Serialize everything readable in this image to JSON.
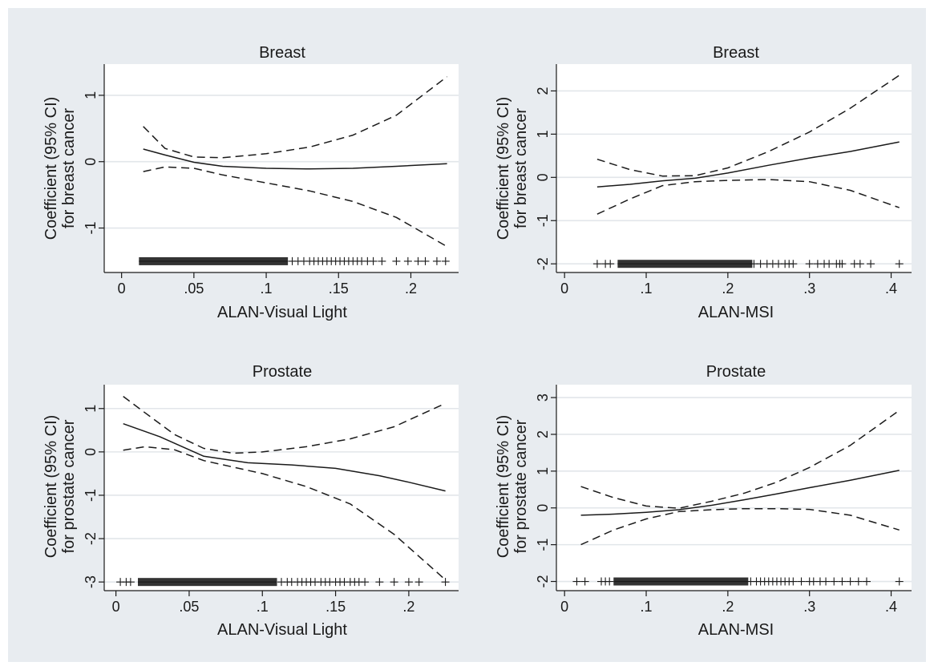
{
  "colors": {
    "figure_background": "#e8ecf0",
    "plot_background": "#ffffff",
    "gridline": "#e2e6ea",
    "line": "#1a1a1a"
  },
  "chart_data": [
    {
      "type": "line",
      "title": "Breast",
      "xlabel": "ALAN-Visual Light",
      "ylabel": [
        "Coefficient (95% CI)",
        "for breast cancer"
      ],
      "xlim": [
        -0.012,
        0.233
      ],
      "ylim": [
        -1.67,
        1.47
      ],
      "xticks": [
        0,
        0.05,
        0.1,
        0.15,
        0.2
      ],
      "xtick_labels": [
        "0",
        ".05",
        ".1",
        ".15",
        ".2"
      ],
      "yticks": [
        -1,
        0,
        1
      ],
      "ytick_labels": [
        "-1",
        "0",
        "1"
      ],
      "grid": true,
      "series": [
        {
          "style": "solid",
          "x": [
            0.015,
            0.03,
            0.05,
            0.07,
            0.1,
            0.13,
            0.16,
            0.19,
            0.225
          ],
          "y": [
            0.19,
            0.1,
            -0.01,
            -0.07,
            -0.1,
            -0.11,
            -0.1,
            -0.07,
            -0.03
          ]
        },
        {
          "style": "dashed",
          "x": [
            0.015,
            0.03,
            0.05,
            0.07,
            0.1,
            0.13,
            0.16,
            0.19,
            0.225
          ],
          "y": [
            0.53,
            0.2,
            0.07,
            0.06,
            0.12,
            0.22,
            0.4,
            0.7,
            1.28
          ]
        },
        {
          "style": "dashed",
          "x": [
            0.015,
            0.03,
            0.05,
            0.07,
            0.1,
            0.13,
            0.16,
            0.19,
            0.225
          ],
          "y": [
            -0.15,
            -0.08,
            -0.1,
            -0.2,
            -0.32,
            -0.44,
            -0.6,
            -0.84,
            -1.28
          ]
        }
      ],
      "rug": {
        "y": -1.5,
        "dense_range": [
          0.012,
          0.115
        ],
        "x": [
          0.118,
          0.122,
          0.126,
          0.13,
          0.133,
          0.136,
          0.139,
          0.142,
          0.145,
          0.148,
          0.151,
          0.154,
          0.157,
          0.16,
          0.163,
          0.166,
          0.17,
          0.174,
          0.18,
          0.19,
          0.198,
          0.205,
          0.21,
          0.218,
          0.224
        ]
      }
    },
    {
      "type": "line",
      "title": "Breast",
      "xlabel": "ALAN-MSI",
      "ylabel": [
        "Coefficient (95% CI)",
        "for breast cancer"
      ],
      "xlim": [
        -0.01,
        0.425
      ],
      "ylim": [
        -2.2,
        2.62
      ],
      "xticks": [
        0,
        0.1,
        0.2,
        0.3,
        0.4
      ],
      "xtick_labels": [
        "0",
        ".1",
        ".2",
        ".3",
        ".4"
      ],
      "yticks": [
        -2,
        -1,
        0,
        1,
        2
      ],
      "ytick_labels": [
        "-2",
        "-1",
        "0",
        "1",
        "2"
      ],
      "grid": true,
      "series": [
        {
          "style": "solid",
          "x": [
            0.04,
            0.08,
            0.12,
            0.16,
            0.2,
            0.25,
            0.3,
            0.35,
            0.41
          ],
          "y": [
            -0.22,
            -0.16,
            -0.08,
            -0.02,
            0.1,
            0.28,
            0.45,
            0.6,
            0.82
          ]
        },
        {
          "style": "dashed",
          "x": [
            0.04,
            0.08,
            0.12,
            0.16,
            0.2,
            0.25,
            0.3,
            0.35,
            0.41
          ],
          "y": [
            0.42,
            0.18,
            0.03,
            0.04,
            0.22,
            0.6,
            1.05,
            1.6,
            2.36
          ]
        },
        {
          "style": "dashed",
          "x": [
            0.04,
            0.08,
            0.12,
            0.16,
            0.2,
            0.25,
            0.3,
            0.35,
            0.41
          ],
          "y": [
            -0.85,
            -0.5,
            -0.19,
            -0.1,
            -0.07,
            -0.05,
            -0.1,
            -0.3,
            -0.7
          ]
        }
      ],
      "rug": {
        "y": -2.0,
        "dense_range": [
          0.065,
          0.23
        ],
        "x": [
          0.04,
          0.05,
          0.056,
          0.232,
          0.24,
          0.248,
          0.255,
          0.262,
          0.27,
          0.275,
          0.28,
          0.3,
          0.31,
          0.318,
          0.324,
          0.333,
          0.337,
          0.34,
          0.355,
          0.362,
          0.375,
          0.41
        ]
      }
    },
    {
      "type": "line",
      "title": "Prostate",
      "xlabel": "ALAN-Visual Light",
      "ylabel": [
        "Coefficient (95% CI)",
        "for prostate cancer"
      ],
      "xlim": [
        -0.008,
        0.234
      ],
      "ylim": [
        -3.2,
        1.55
      ],
      "xticks": [
        0,
        0.05,
        0.1,
        0.15,
        0.2
      ],
      "xtick_labels": [
        "0",
        ".05",
        ".1",
        ".15",
        ".2"
      ],
      "yticks": [
        -3,
        -2,
        -1,
        0,
        1
      ],
      "ytick_labels": [
        "-3",
        "-2",
        "-1",
        "0",
        "1"
      ],
      "grid": true,
      "series": [
        {
          "style": "solid",
          "x": [
            0.005,
            0.03,
            0.06,
            0.09,
            0.12,
            0.15,
            0.18,
            0.2,
            0.225
          ],
          "y": [
            0.65,
            0.35,
            -0.1,
            -0.25,
            -0.3,
            -0.38,
            -0.55,
            -0.7,
            -0.9
          ]
        },
        {
          "style": "dashed",
          "x": [
            0.005,
            0.02,
            0.04,
            0.06,
            0.08,
            0.1,
            0.13,
            0.16,
            0.19,
            0.225
          ],
          "y": [
            1.28,
            0.9,
            0.4,
            0.08,
            -0.03,
            0.0,
            0.12,
            0.3,
            0.58,
            1.12
          ]
        },
        {
          "style": "dashed",
          "x": [
            0.005,
            0.02,
            0.04,
            0.06,
            0.08,
            0.1,
            0.13,
            0.16,
            0.19,
            0.225
          ],
          "y": [
            0.04,
            0.12,
            0.05,
            -0.2,
            -0.35,
            -0.5,
            -0.8,
            -1.2,
            -1.9,
            -2.95
          ]
        }
      ],
      "rug": {
        "y": -3.0,
        "dense_range": [
          0.015,
          0.11
        ],
        "x": [
          0.003,
          0.007,
          0.01,
          0.113,
          0.117,
          0.12,
          0.124,
          0.127,
          0.13,
          0.133,
          0.136,
          0.14,
          0.143,
          0.146,
          0.15,
          0.153,
          0.156,
          0.16,
          0.163,
          0.166,
          0.17,
          0.18,
          0.19,
          0.2,
          0.207,
          0.225
        ]
      }
    },
    {
      "type": "line",
      "title": "Prostate",
      "xlabel": "ALAN-MSI",
      "ylabel": [
        "Coefficient (95% CI)",
        "for prostate cancer"
      ],
      "xlim": [
        -0.01,
        0.425
      ],
      "ylim": [
        -2.25,
        3.35
      ],
      "xticks": [
        0,
        0.1,
        0.2,
        0.3,
        0.4
      ],
      "xtick_labels": [
        "0",
        ".1",
        ".2",
        ".3",
        ".4"
      ],
      "yticks": [
        -2,
        -1,
        0,
        1,
        2,
        3
      ],
      "ytick_labels": [
        "-2",
        "-1",
        "0",
        "1",
        "2",
        "3"
      ],
      "grid": true,
      "series": [
        {
          "style": "solid",
          "x": [
            0.02,
            0.06,
            0.1,
            0.14,
            0.18,
            0.22,
            0.26,
            0.3,
            0.35,
            0.41
          ],
          "y": [
            -0.2,
            -0.17,
            -0.12,
            -0.05,
            0.07,
            0.22,
            0.38,
            0.55,
            0.75,
            1.02
          ]
        },
        {
          "style": "dashed",
          "x": [
            0.02,
            0.06,
            0.1,
            0.14,
            0.18,
            0.22,
            0.26,
            0.3,
            0.35,
            0.41
          ],
          "y": [
            0.58,
            0.28,
            0.05,
            -0.01,
            0.18,
            0.4,
            0.7,
            1.1,
            1.7,
            2.65
          ]
        },
        {
          "style": "dashed",
          "x": [
            0.02,
            0.06,
            0.1,
            0.14,
            0.18,
            0.22,
            0.26,
            0.3,
            0.35,
            0.41
          ],
          "y": [
            -1.0,
            -0.6,
            -0.3,
            -0.1,
            -0.05,
            -0.02,
            -0.02,
            -0.04,
            -0.2,
            -0.6
          ]
        }
      ],
      "rug": {
        "y": -2.0,
        "dense_range": [
          0.06,
          0.225
        ],
        "x": [
          0.015,
          0.025,
          0.045,
          0.05,
          0.055,
          0.228,
          0.235,
          0.24,
          0.245,
          0.25,
          0.255,
          0.26,
          0.265,
          0.27,
          0.275,
          0.28,
          0.29,
          0.3,
          0.305,
          0.313,
          0.32,
          0.33,
          0.34,
          0.35,
          0.36,
          0.37,
          0.41
        ]
      }
    }
  ]
}
